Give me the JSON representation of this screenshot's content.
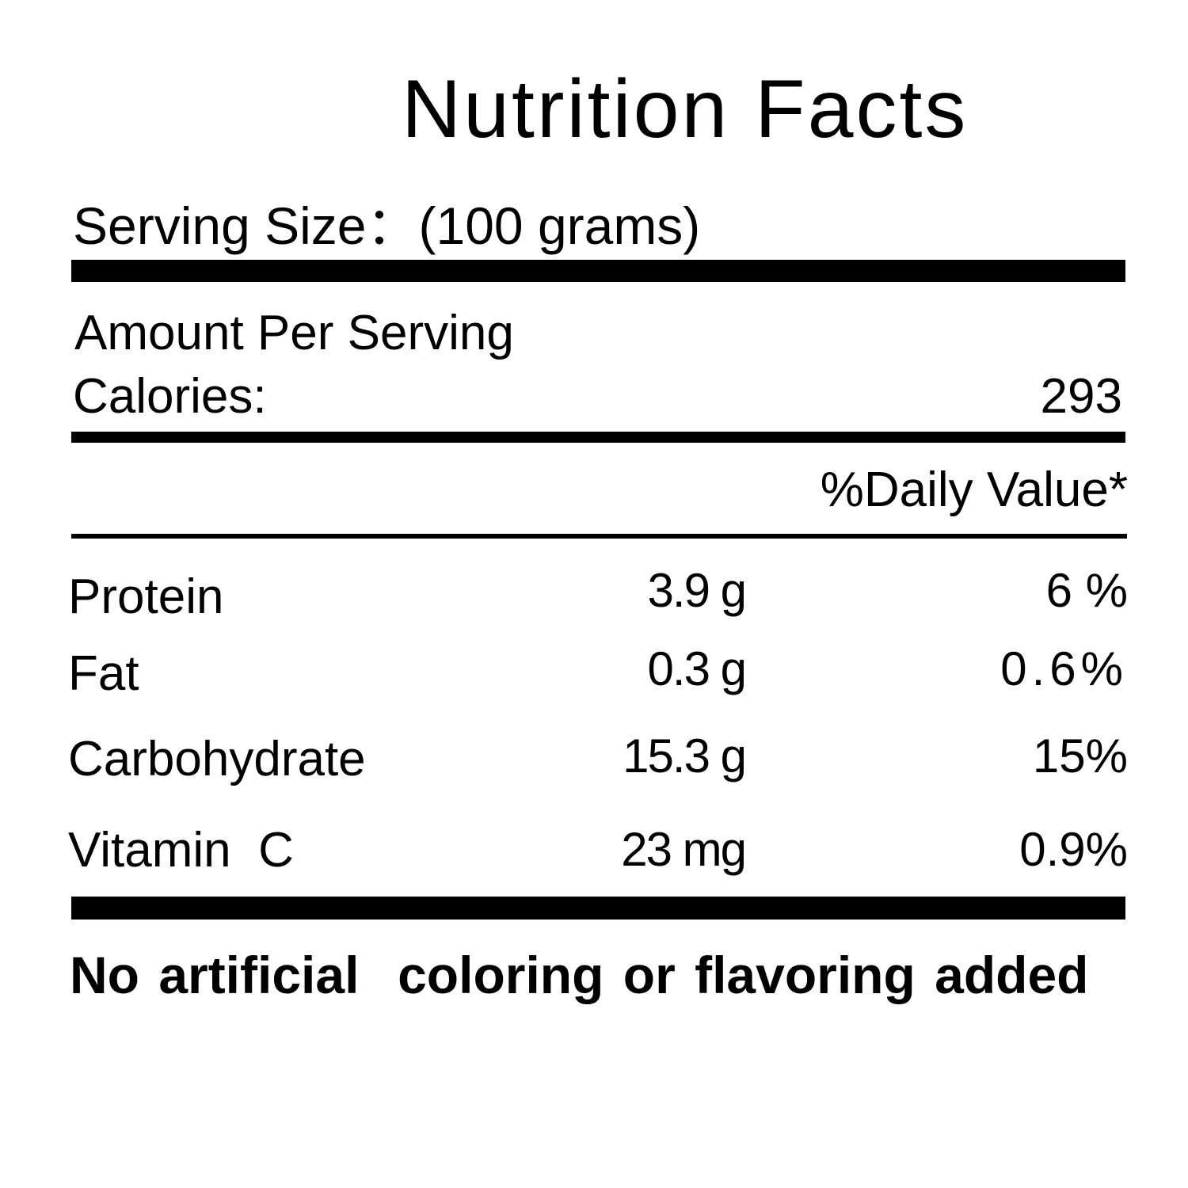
{
  "label": {
    "title": "Nutrition Facts",
    "serving_size": "Serving Size：(100 grams)",
    "amount_per_serving": "Amount Per Serving",
    "calories_label": "Calories:",
    "calories_value": "293",
    "daily_value_header": "%Daily Value*",
    "nutrients": [
      {
        "name": "Protein",
        "amount": "3.9 g",
        "daily_value": "6 %"
      },
      {
        "name": "Fat",
        "amount": "0.3 g",
        "daily_value": "0.6%"
      },
      {
        "name": "Carbohydrate",
        "amount": "15.3 g",
        "daily_value": "15%"
      },
      {
        "name": "Vitamin  C",
        "amount": "23 mg",
        "daily_value": "0.9%"
      }
    ],
    "footer_note": "No artificial  coloring or flavoring added"
  },
  "colors": {
    "text": "#000000",
    "background": "#ffffff"
  }
}
